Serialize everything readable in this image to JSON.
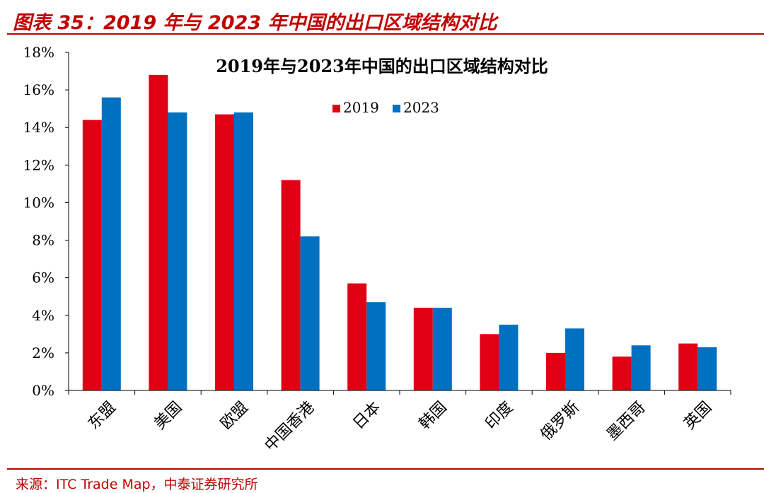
{
  "header": {
    "figure_title": "图表 35：2019 年与 2023 年中国的出口区域结构对比"
  },
  "footer": {
    "source": "来源：ITC Trade Map，中泰证券研究所"
  },
  "colors": {
    "series_2019": "#e00016",
    "series_2023": "#0070c0",
    "accent_red": "#c00000"
  },
  "chart_data": {
    "type": "bar",
    "title": "2019年与2023年中国的出口区域结构对比",
    "categories": [
      "东盟",
      "美国",
      "欧盟",
      "中国香港",
      "日本",
      "韩国",
      "印度",
      "俄罗斯",
      "墨西哥",
      "英国"
    ],
    "series": [
      {
        "name": "2019",
        "values": [
          14.4,
          16.8,
          14.7,
          11.2,
          5.7,
          4.4,
          3.0,
          2.0,
          1.8,
          2.5
        ]
      },
      {
        "name": "2023",
        "values": [
          15.6,
          14.8,
          14.8,
          8.2,
          4.7,
          4.4,
          3.5,
          3.3,
          2.4,
          2.3
        ]
      }
    ],
    "ylim": [
      0,
      18
    ],
    "yticks": [
      "0%",
      "2%",
      "4%",
      "6%",
      "8%",
      "10%",
      "12%",
      "14%",
      "16%",
      "18%"
    ],
    "legend_position": "top-center",
    "grid": false
  }
}
